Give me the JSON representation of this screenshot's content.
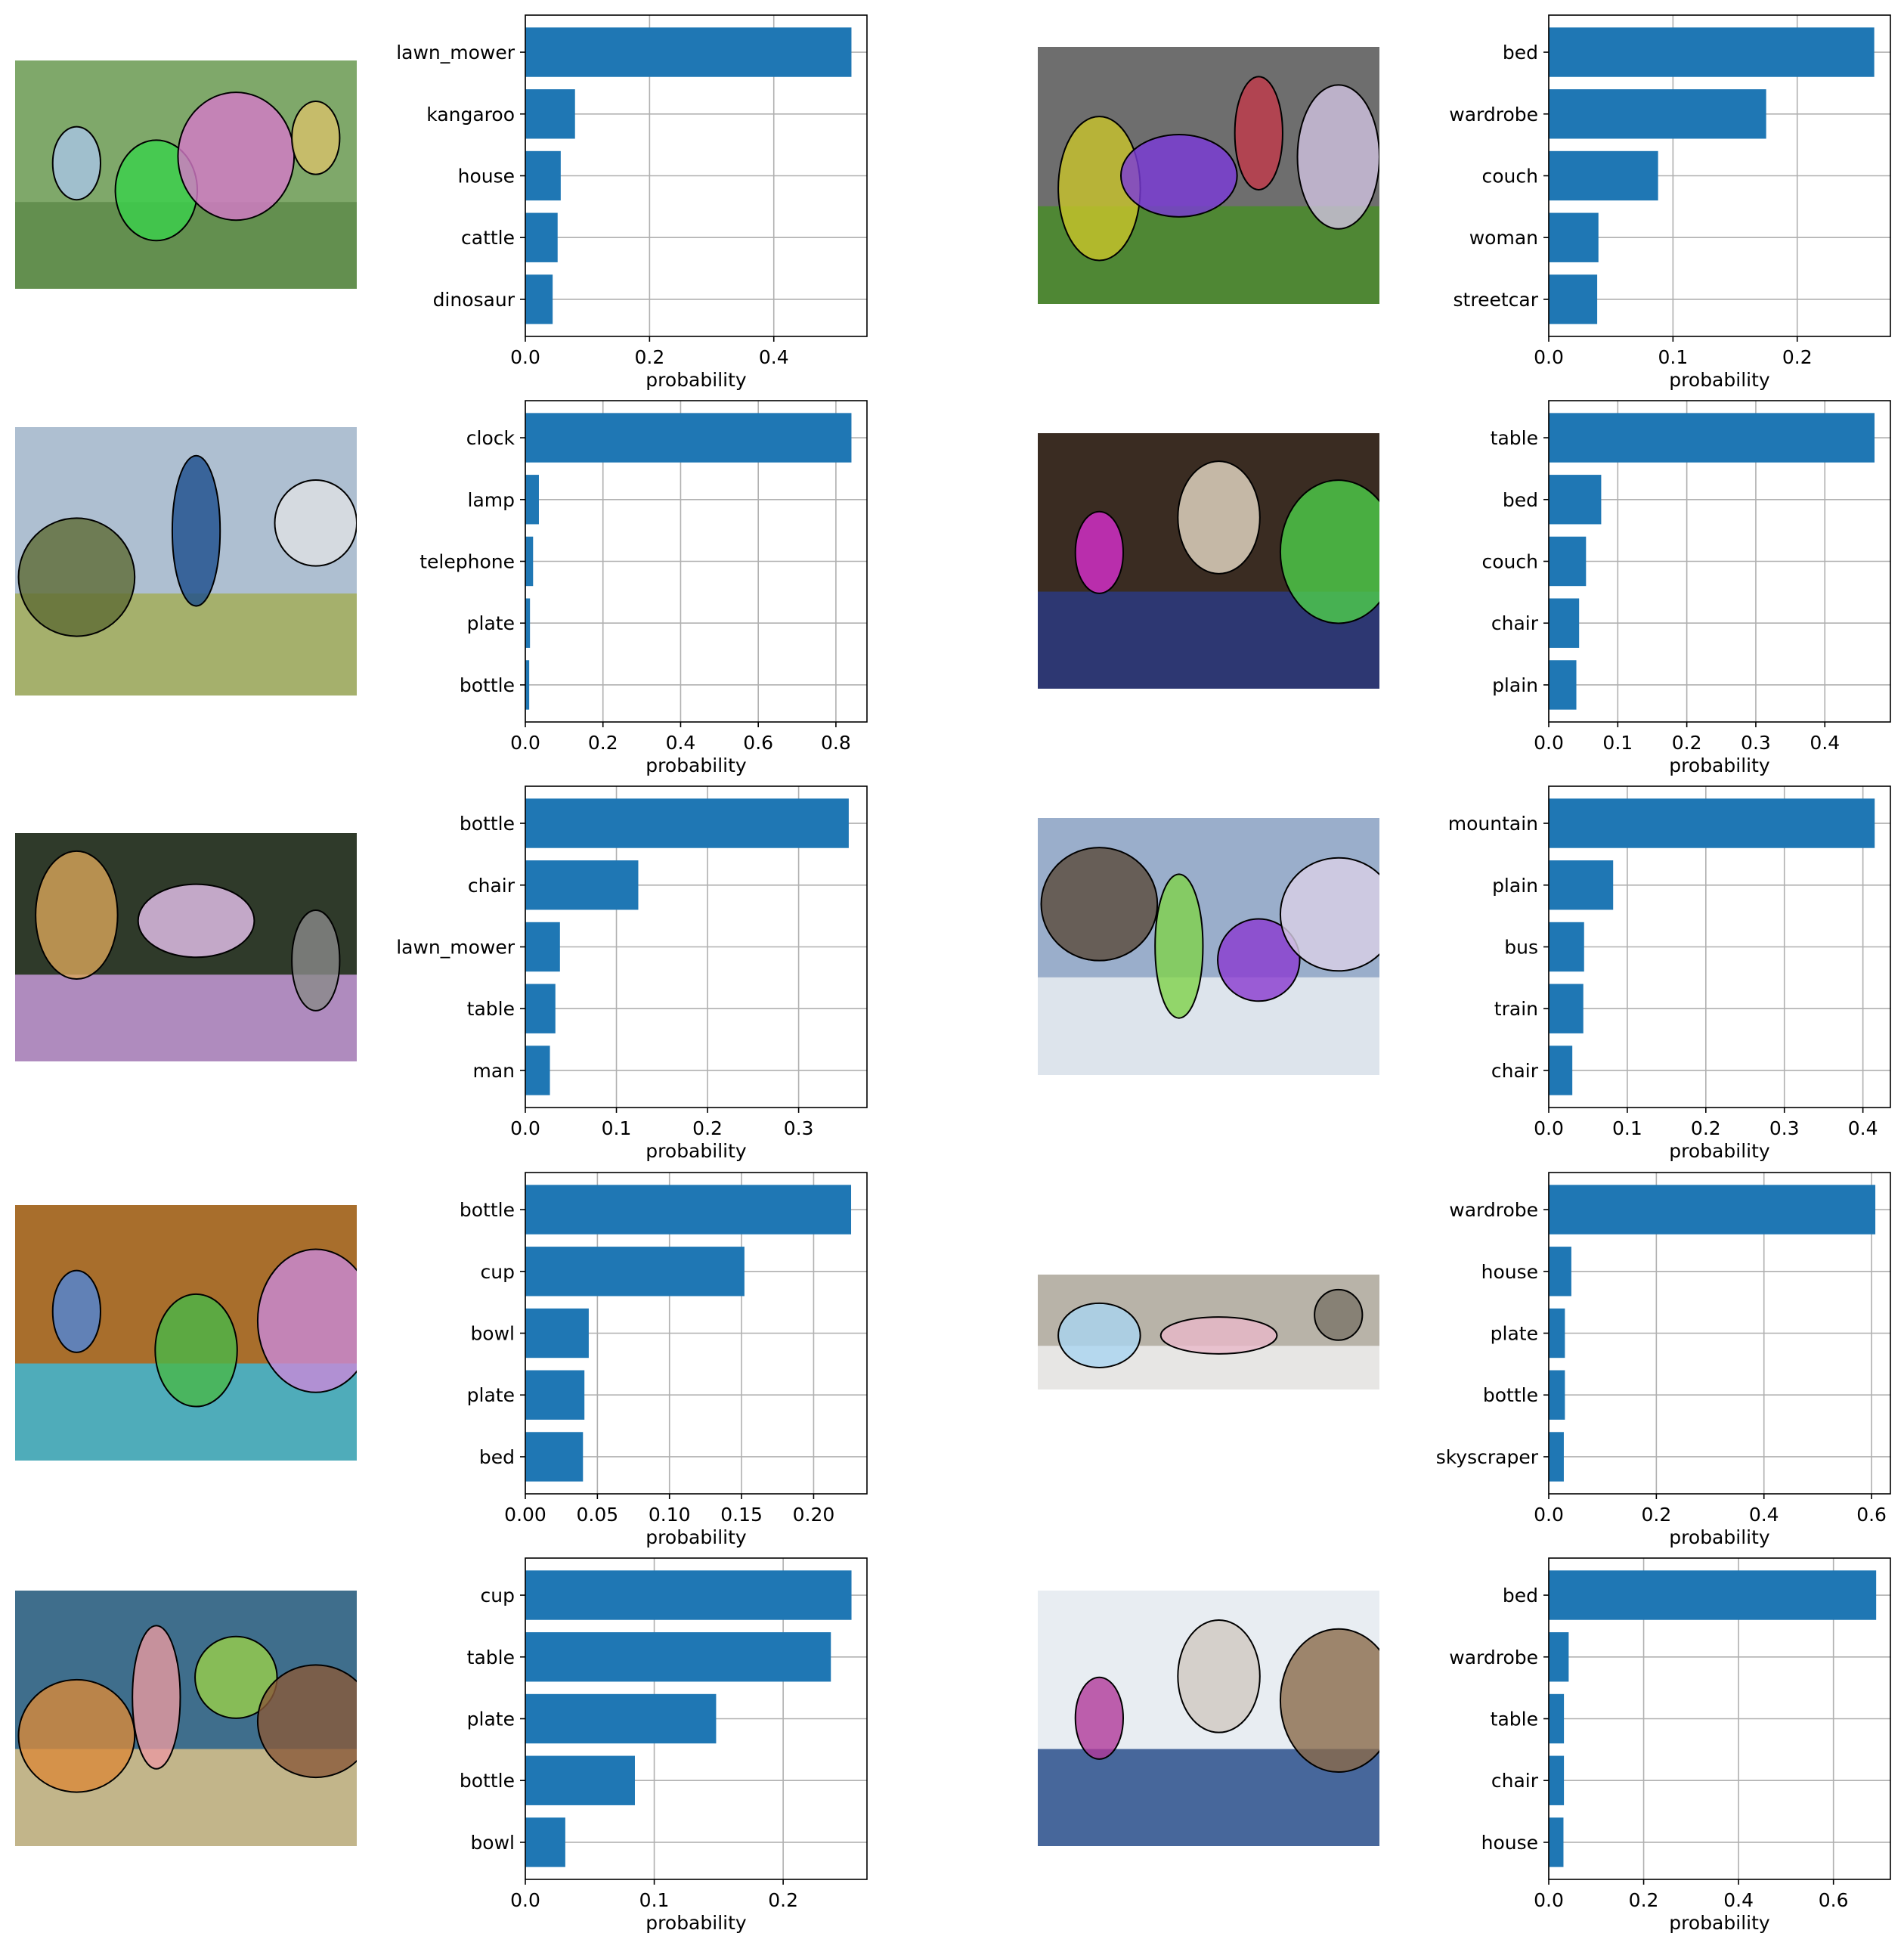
{
  "figure": {
    "bar_color": "#1f77b4",
    "grid_color": "#b0b0b0",
    "panels": [
      {
        "id": "panel-1",
        "image": {
          "icon": "photo-people-on-lawn-with-segmentation",
          "colors": [
            "#7fa86a",
            "#5e8b4a",
            "#a9c4e6",
            "#3ad14b",
            "#d679c9",
            "#d8c06a"
          ]
        },
        "chart_data": {
          "type": "bar",
          "orientation": "horizontal",
          "categories": [
            "lawn_mower",
            "kangaroo",
            "house",
            "cattle",
            "dinosaur"
          ],
          "values": [
            0.525,
            0.08,
            0.057,
            0.052,
            0.044
          ],
          "xlabel": "probability",
          "xlim": [
            0,
            0.55
          ],
          "xticks": [
            0.0,
            0.2,
            0.4
          ],
          "xtick_labels": [
            "0.0",
            "0.2",
            "0.4"
          ],
          "grid": true
        }
      },
      {
        "id": "panel-2",
        "image": {
          "icon": "photo-street-crowd-with-segmentation",
          "colors": [
            "#6e6e6e",
            "#4a8c2a",
            "#c9c42b",
            "#7a3ad9",
            "#c23a4a",
            "#d0c2e0"
          ]
        },
        "chart_data": {
          "type": "bar",
          "orientation": "horizontal",
          "categories": [
            "bed",
            "wardrobe",
            "couch",
            "woman",
            "streetcar"
          ],
          "values": [
            0.262,
            0.175,
            0.088,
            0.04,
            0.039
          ],
          "xlabel": "probability",
          "xlim": [
            0,
            0.275
          ],
          "xticks": [
            0.0,
            0.1,
            0.2
          ],
          "xtick_labels": [
            "0.0",
            "0.1",
            "0.2"
          ],
          "grid": true
        }
      },
      {
        "id": "panel-3",
        "image": {
          "icon": "photo-clock-with-segmentation",
          "colors": [
            "#aebfd1",
            "#a3ad5a",
            "#5e6b35",
            "#1c4d8c",
            "#dfe1e3"
          ]
        },
        "chart_data": {
          "type": "bar",
          "orientation": "horizontal",
          "categories": [
            "clock",
            "lamp",
            "telephone",
            "plate",
            "bottle"
          ],
          "values": [
            0.84,
            0.035,
            0.02,
            0.012,
            0.01
          ],
          "xlabel": "probability",
          "xlim": [
            0,
            0.88
          ],
          "xticks": [
            0.0,
            0.2,
            0.4,
            0.6,
            0.8
          ],
          "xtick_labels": [
            "0.0",
            "0.2",
            "0.4",
            "0.6",
            "0.8"
          ],
          "grid": true
        }
      },
      {
        "id": "panel-4",
        "image": {
          "icon": "photo-laptop-on-table-with-segmentation",
          "colors": [
            "#3a2c22",
            "#2b3a80",
            "#d92fd0",
            "#e8dcc8",
            "#4ecf4a"
          ]
        },
        "chart_data": {
          "type": "bar",
          "orientation": "horizontal",
          "categories": [
            "table",
            "bed",
            "couch",
            "chair",
            "plain"
          ],
          "values": [
            0.472,
            0.076,
            0.054,
            0.044,
            0.04
          ],
          "xlabel": "probability",
          "xlim": [
            0,
            0.495
          ],
          "xticks": [
            0.0,
            0.1,
            0.2,
            0.3,
            0.4
          ],
          "xtick_labels": [
            "0.0",
            "0.1",
            "0.2",
            "0.3",
            "0.4"
          ],
          "grid": true
        }
      },
      {
        "id": "panel-5",
        "image": {
          "icon": "photo-man-with-bottle-with-segmentation",
          "colors": [
            "#2f3a2a",
            "#c59ad8",
            "#d9a65a",
            "#e8c4f0",
            "#8a8a8a"
          ]
        },
        "chart_data": {
          "type": "bar",
          "orientation": "horizontal",
          "categories": [
            "bottle",
            "chair",
            "lawn_mower",
            "table",
            "man"
          ],
          "values": [
            0.355,
            0.124,
            0.038,
            0.033,
            0.027
          ],
          "xlabel": "probability",
          "xlim": [
            0,
            0.375
          ],
          "xticks": [
            0.0,
            0.1,
            0.2,
            0.3
          ],
          "xtick_labels": [
            "0.0",
            "0.1",
            "0.2",
            "0.3"
          ],
          "grid": true
        }
      },
      {
        "id": "panel-6",
        "image": {
          "icon": "photo-ski-slope-with-segmentation",
          "colors": [
            "#9aaecb",
            "#e9edf2",
            "#5a4a3a",
            "#7fd24a",
            "#8a3ad0",
            "#d9d0e6"
          ]
        },
        "chart_data": {
          "type": "bar",
          "orientation": "horizontal",
          "categories": [
            "mountain",
            "plain",
            "bus",
            "train",
            "chair"
          ],
          "values": [
            0.415,
            0.082,
            0.045,
            0.044,
            0.03
          ],
          "xlabel": "probability",
          "xlim": [
            0,
            0.435
          ],
          "xticks": [
            0.0,
            0.1,
            0.2,
            0.3,
            0.4
          ],
          "xtick_labels": [
            "0.0",
            "0.1",
            "0.2",
            "0.3",
            "0.4"
          ],
          "grid": true
        }
      },
      {
        "id": "panel-7",
        "image": {
          "icon": "photo-child-with-cup-and-bowl-with-segmentation",
          "colors": [
            "#a86e2c",
            "#3fb7d4",
            "#4f86d9",
            "#48b848",
            "#c98ad9"
          ]
        },
        "chart_data": {
          "type": "bar",
          "orientation": "horizontal",
          "categories": [
            "bottle",
            "cup",
            "bowl",
            "plate",
            "bed"
          ],
          "values": [
            0.226,
            0.152,
            0.044,
            0.041,
            0.04
          ],
          "xlabel": "probability",
          "xlim": [
            0,
            0.237
          ],
          "xticks": [
            0.0,
            0.05,
            0.1,
            0.15,
            0.2
          ],
          "xtick_labels": [
            "0.00",
            "0.05",
            "0.10",
            "0.15",
            "0.20"
          ],
          "grid": true
        }
      },
      {
        "id": "panel-8",
        "image": {
          "icon": "photo-bathroom-towels-with-segmentation",
          "colors": [
            "#b8b3a8",
            "#eeeeee",
            "#a9d4f0",
            "#e8b8c8",
            "#7a7468"
          ]
        },
        "chart_data": {
          "type": "bar",
          "orientation": "horizontal",
          "categories": [
            "wardrobe",
            "house",
            "plate",
            "bottle",
            "skyscraper"
          ],
          "values": [
            0.607,
            0.042,
            0.03,
            0.03,
            0.028
          ],
          "xlabel": "probability",
          "xlim": [
            0,
            0.635
          ],
          "xticks": [
            0.0,
            0.2,
            0.4,
            0.6
          ],
          "xtick_labels": [
            "0.0",
            "0.2",
            "0.4",
            "0.6"
          ],
          "grid": true
        }
      },
      {
        "id": "panel-9",
        "image": {
          "icon": "photo-still-life-cup-and-vase-with-segmentation",
          "colors": [
            "#3f6e8c",
            "#d9c28a",
            "#d98a3a",
            "#e89aa0",
            "#9ad04a",
            "#8a5a3a"
          ]
        },
        "chart_data": {
          "type": "bar",
          "orientation": "horizontal",
          "categories": [
            "cup",
            "table",
            "plate",
            "bottle",
            "bowl"
          ],
          "values": [
            0.253,
            0.237,
            0.148,
            0.085,
            0.031
          ],
          "xlabel": "probability",
          "xlim": [
            0,
            0.265
          ],
          "xticks": [
            0.0,
            0.1,
            0.2
          ],
          "xtick_labels": [
            "0.0",
            "0.1",
            "0.2"
          ],
          "grid": true
        }
      },
      {
        "id": "panel-10",
        "image": {
          "icon": "photo-toilet-on-blue-tiles-with-segmentation",
          "colors": [
            "#e8edf2",
            "#2a4f8c",
            "#b03a9a",
            "#cfc8c0",
            "#8a6a4a"
          ]
        },
        "chart_data": {
          "type": "bar",
          "orientation": "horizontal",
          "categories": [
            "bed",
            "wardrobe",
            "table",
            "chair",
            "house"
          ],
          "values": [
            0.69,
            0.042,
            0.032,
            0.032,
            0.031
          ],
          "xlabel": "probability",
          "xlim": [
            0,
            0.72
          ],
          "xticks": [
            0.0,
            0.2,
            0.4,
            0.6
          ],
          "xtick_labels": [
            "0.0",
            "0.2",
            "0.4",
            "0.6"
          ],
          "grid": true
        }
      }
    ]
  }
}
